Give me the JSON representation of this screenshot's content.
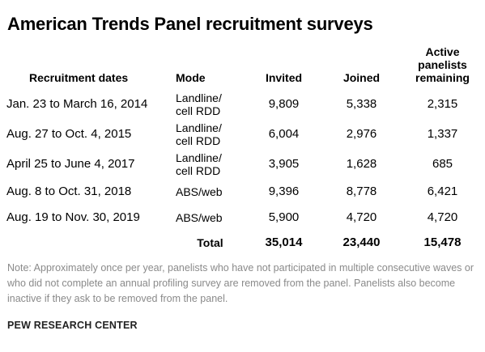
{
  "title": "American Trends Panel recruitment surveys",
  "columns": {
    "dates": "Recruitment dates",
    "mode": "Mode",
    "invited": "Invited",
    "joined": "Joined",
    "active": "Active\npanelists\nremaining"
  },
  "rows": [
    {
      "dates": "Jan. 23 to March 16, 2014",
      "mode": "Landline/\ncell RDD",
      "invited": "9,809",
      "joined": "5,338",
      "active": "2,315"
    },
    {
      "dates": "Aug. 27 to Oct. 4, 2015",
      "mode": "Landline/\ncell RDD",
      "invited": "6,004",
      "joined": "2,976",
      "active": "1,337"
    },
    {
      "dates": "April 25 to June 4, 2017",
      "mode": "Landline/\ncell RDD",
      "invited": "3,905",
      "joined": "1,628",
      "active": "685"
    },
    {
      "dates": "Aug. 8 to Oct. 31, 2018",
      "mode": "ABS/web",
      "invited": "9,396",
      "joined": "8,778",
      "active": "6,421"
    },
    {
      "dates": "Aug. 19 to Nov. 30, 2019",
      "mode": "ABS/web",
      "invited": "5,900",
      "joined": "4,720",
      "active": "4,720"
    }
  ],
  "total": {
    "label": "Total",
    "invited": "35,014",
    "joined": "23,440",
    "active": "15,478"
  },
  "note": "Note: Approximately once per year, panelists who have not participated in multiple consecutive waves or who did not complete an annual profiling survey are removed from the panel. Panelists also become inactive if they ask to be removed from the panel.",
  "source": "PEW RESEARCH CENTER"
}
